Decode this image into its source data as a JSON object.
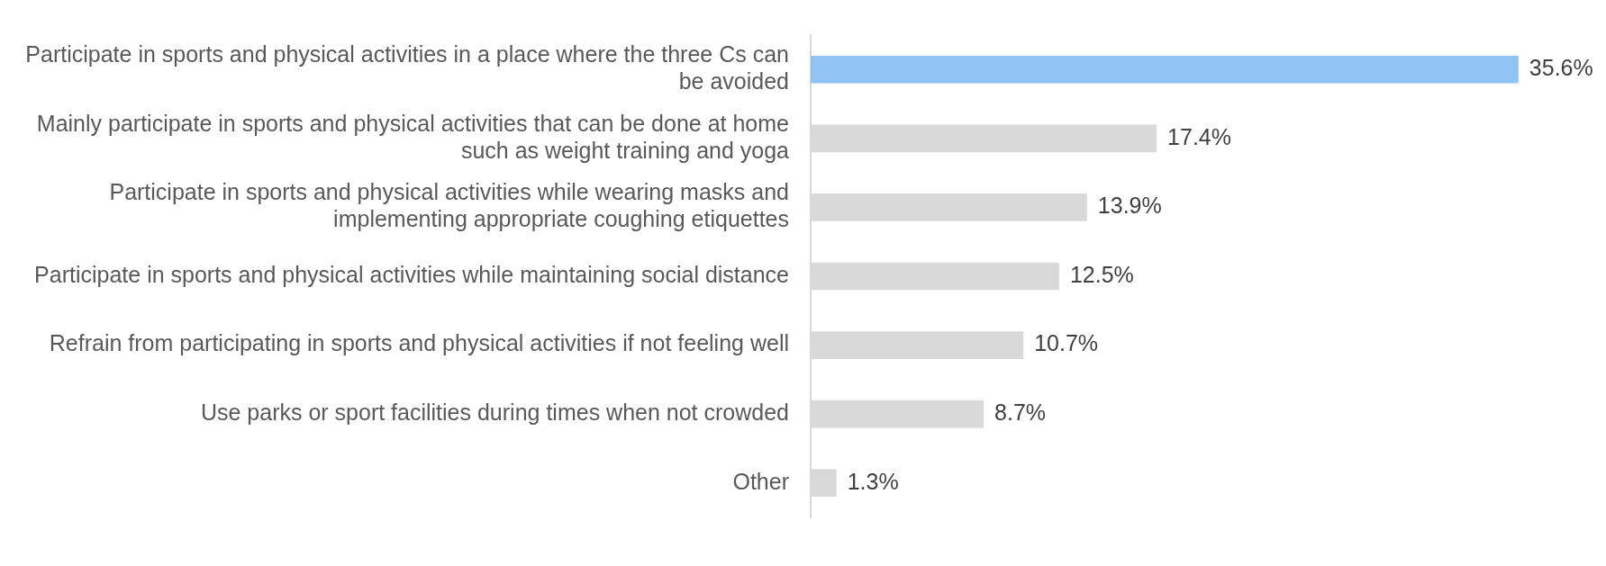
{
  "chart_data": {
    "type": "bar",
    "orientation": "horizontal",
    "categories": [
      "Participate in sports and physical activities in a place where the three Cs can be avoided",
      "Mainly participate in sports and physical activities that can be done at home such as weight training and yoga",
      "Participate in sports and physical activities while wearing masks and implementing appropriate coughing etiquettes",
      "Participate in sports and physical activities while maintaining social distance",
      "Refrain from participating in sports and physical activities if not feeling well",
      "Use parks or sport facilities during times when not crowded",
      "Other"
    ],
    "values": [
      35.6,
      17.4,
      13.9,
      12.5,
      10.7,
      8.7,
      1.3
    ],
    "colors": [
      "#91c4f5",
      "#d9d9d9",
      "#d9d9d9",
      "#d9d9d9",
      "#d9d9d9",
      "#d9d9d9",
      "#d9d9d9"
    ],
    "value_labels": [
      "35.6%",
      "17.4%",
      "13.9%",
      "12.5%",
      "10.7%",
      "8.7%",
      "1.3%"
    ],
    "tick_labels": "y",
    "grid": false,
    "legend": false
  }
}
